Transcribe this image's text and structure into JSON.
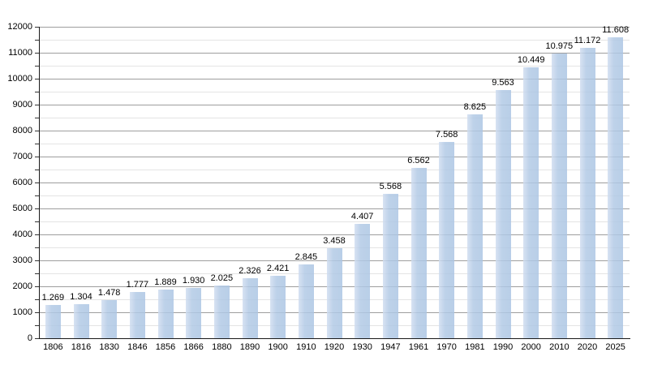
{
  "chart_data": {
    "type": "bar",
    "title": "",
    "xlabel": "",
    "ylabel": "",
    "categories": [
      "1806",
      "1816",
      "1830",
      "1846",
      "1856",
      "1866",
      "1880",
      "1890",
      "1900",
      "1910",
      "1920",
      "1930",
      "1947",
      "1961",
      "1970",
      "1981",
      "1990",
      "2000",
      "2010",
      "2020",
      "2025"
    ],
    "values": [
      1269,
      1304,
      1478,
      1777,
      1889,
      1930,
      2025,
      2326,
      2421,
      2845,
      3458,
      4407,
      5568,
      6562,
      7568,
      8625,
      9563,
      10449,
      10975,
      11172,
      11608
    ],
    "value_labels": [
      "1.269",
      "1.304",
      "1.478",
      "1.777",
      "1.889",
      "1.930",
      "2.025",
      "2.326",
      "2.421",
      "2.845",
      "3.458",
      "4.407",
      "5.568",
      "6.562",
      "7.568",
      "8.625",
      "9.563",
      "10.449",
      "10.975",
      "11.172",
      "11.608"
    ],
    "ylim": [
      0,
      12000
    ],
    "y_tick_labels": [
      "0",
      "1000",
      "2000",
      "3000",
      "4000",
      "5000",
      "6000",
      "7000",
      "8000",
      "9000",
      "10000",
      "11000",
      "12000"
    ],
    "y_major_tick": 1000,
    "y_minor_tick": 500,
    "grid": "on",
    "legend": "none",
    "colors": {
      "bar_fill_light": "#d0ddf0",
      "bar_fill_dark": "#abc5e3",
      "grid_major": "#9e9e9e",
      "grid_minor": "#e4e4e4",
      "axis": "#1a1a1a",
      "label_text": "#000000",
      "background": "#ffffff"
    }
  }
}
